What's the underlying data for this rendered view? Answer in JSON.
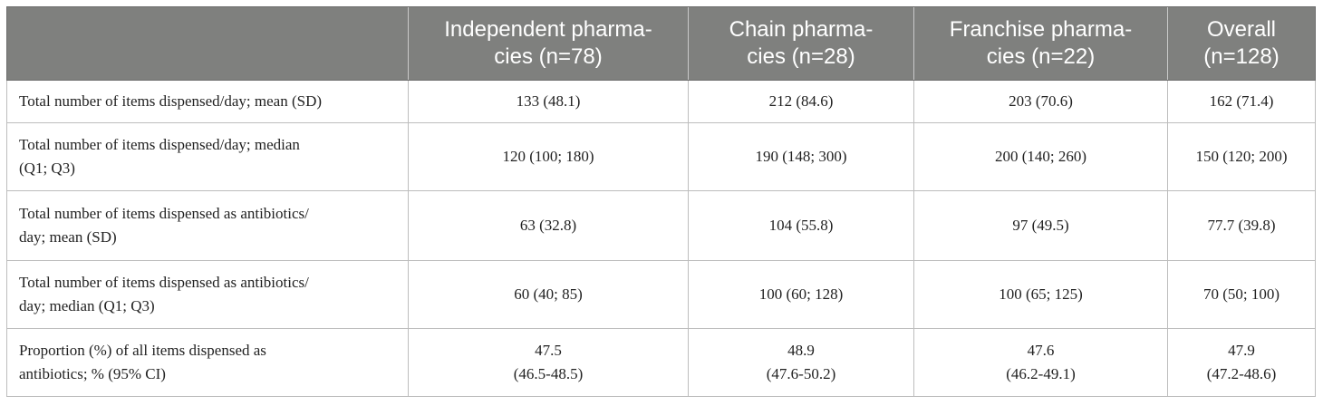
{
  "table": {
    "headers": [
      {
        "lines": [
          ""
        ]
      },
      {
        "lines": [
          "Independent pharma-",
          "cies (n=78)"
        ]
      },
      {
        "lines": [
          "Chain pharma-",
          "cies (n=28)"
        ]
      },
      {
        "lines": [
          "Franchise pharma-",
          "cies (n=22)"
        ]
      },
      {
        "lines": [
          "Overall",
          "(n=128)"
        ]
      }
    ],
    "rows": [
      {
        "label": [
          "Total number of items dispensed/day; mean (SD)"
        ],
        "cells": [
          [
            "133 (48.1)"
          ],
          [
            "212 (84.6)"
          ],
          [
            "203 (70.6)"
          ],
          [
            "162 (71.4)"
          ]
        ]
      },
      {
        "label": [
          "Total number of items dispensed/day; median",
          "(Q1; Q3)"
        ],
        "cells": [
          [
            "120 (100; 180)"
          ],
          [
            "190 (148; 300)"
          ],
          [
            "200 (140; 260)"
          ],
          [
            "150 (120; 200)"
          ]
        ]
      },
      {
        "label": [
          "Total number of items dispensed as antibiotics/",
          "day; mean (SD)"
        ],
        "cells": [
          [
            "63 (32.8)"
          ],
          [
            "104 (55.8)"
          ],
          [
            "97 (49.5)"
          ],
          [
            "77.7 (39.8)"
          ]
        ]
      },
      {
        "label": [
          "Total number of items dispensed as antibiotics/",
          "day; median (Q1; Q3)"
        ],
        "cells": [
          [
            "60 (40; 85)"
          ],
          [
            "100 (60; 128)"
          ],
          [
            "100 (65; 125)"
          ],
          [
            "70 (50; 100)"
          ]
        ]
      },
      {
        "label": [
          "Proportion (%) of all items dispensed as",
          "antibiotics; % (95% CI)"
        ],
        "cells": [
          [
            "47.5",
            "(46.5-48.5)"
          ],
          [
            "48.9",
            "(47.6-50.2)"
          ],
          [
            "47.6",
            "(46.2-49.1)"
          ],
          [
            "47.9",
            "(47.2-48.6)"
          ]
        ]
      }
    ]
  }
}
